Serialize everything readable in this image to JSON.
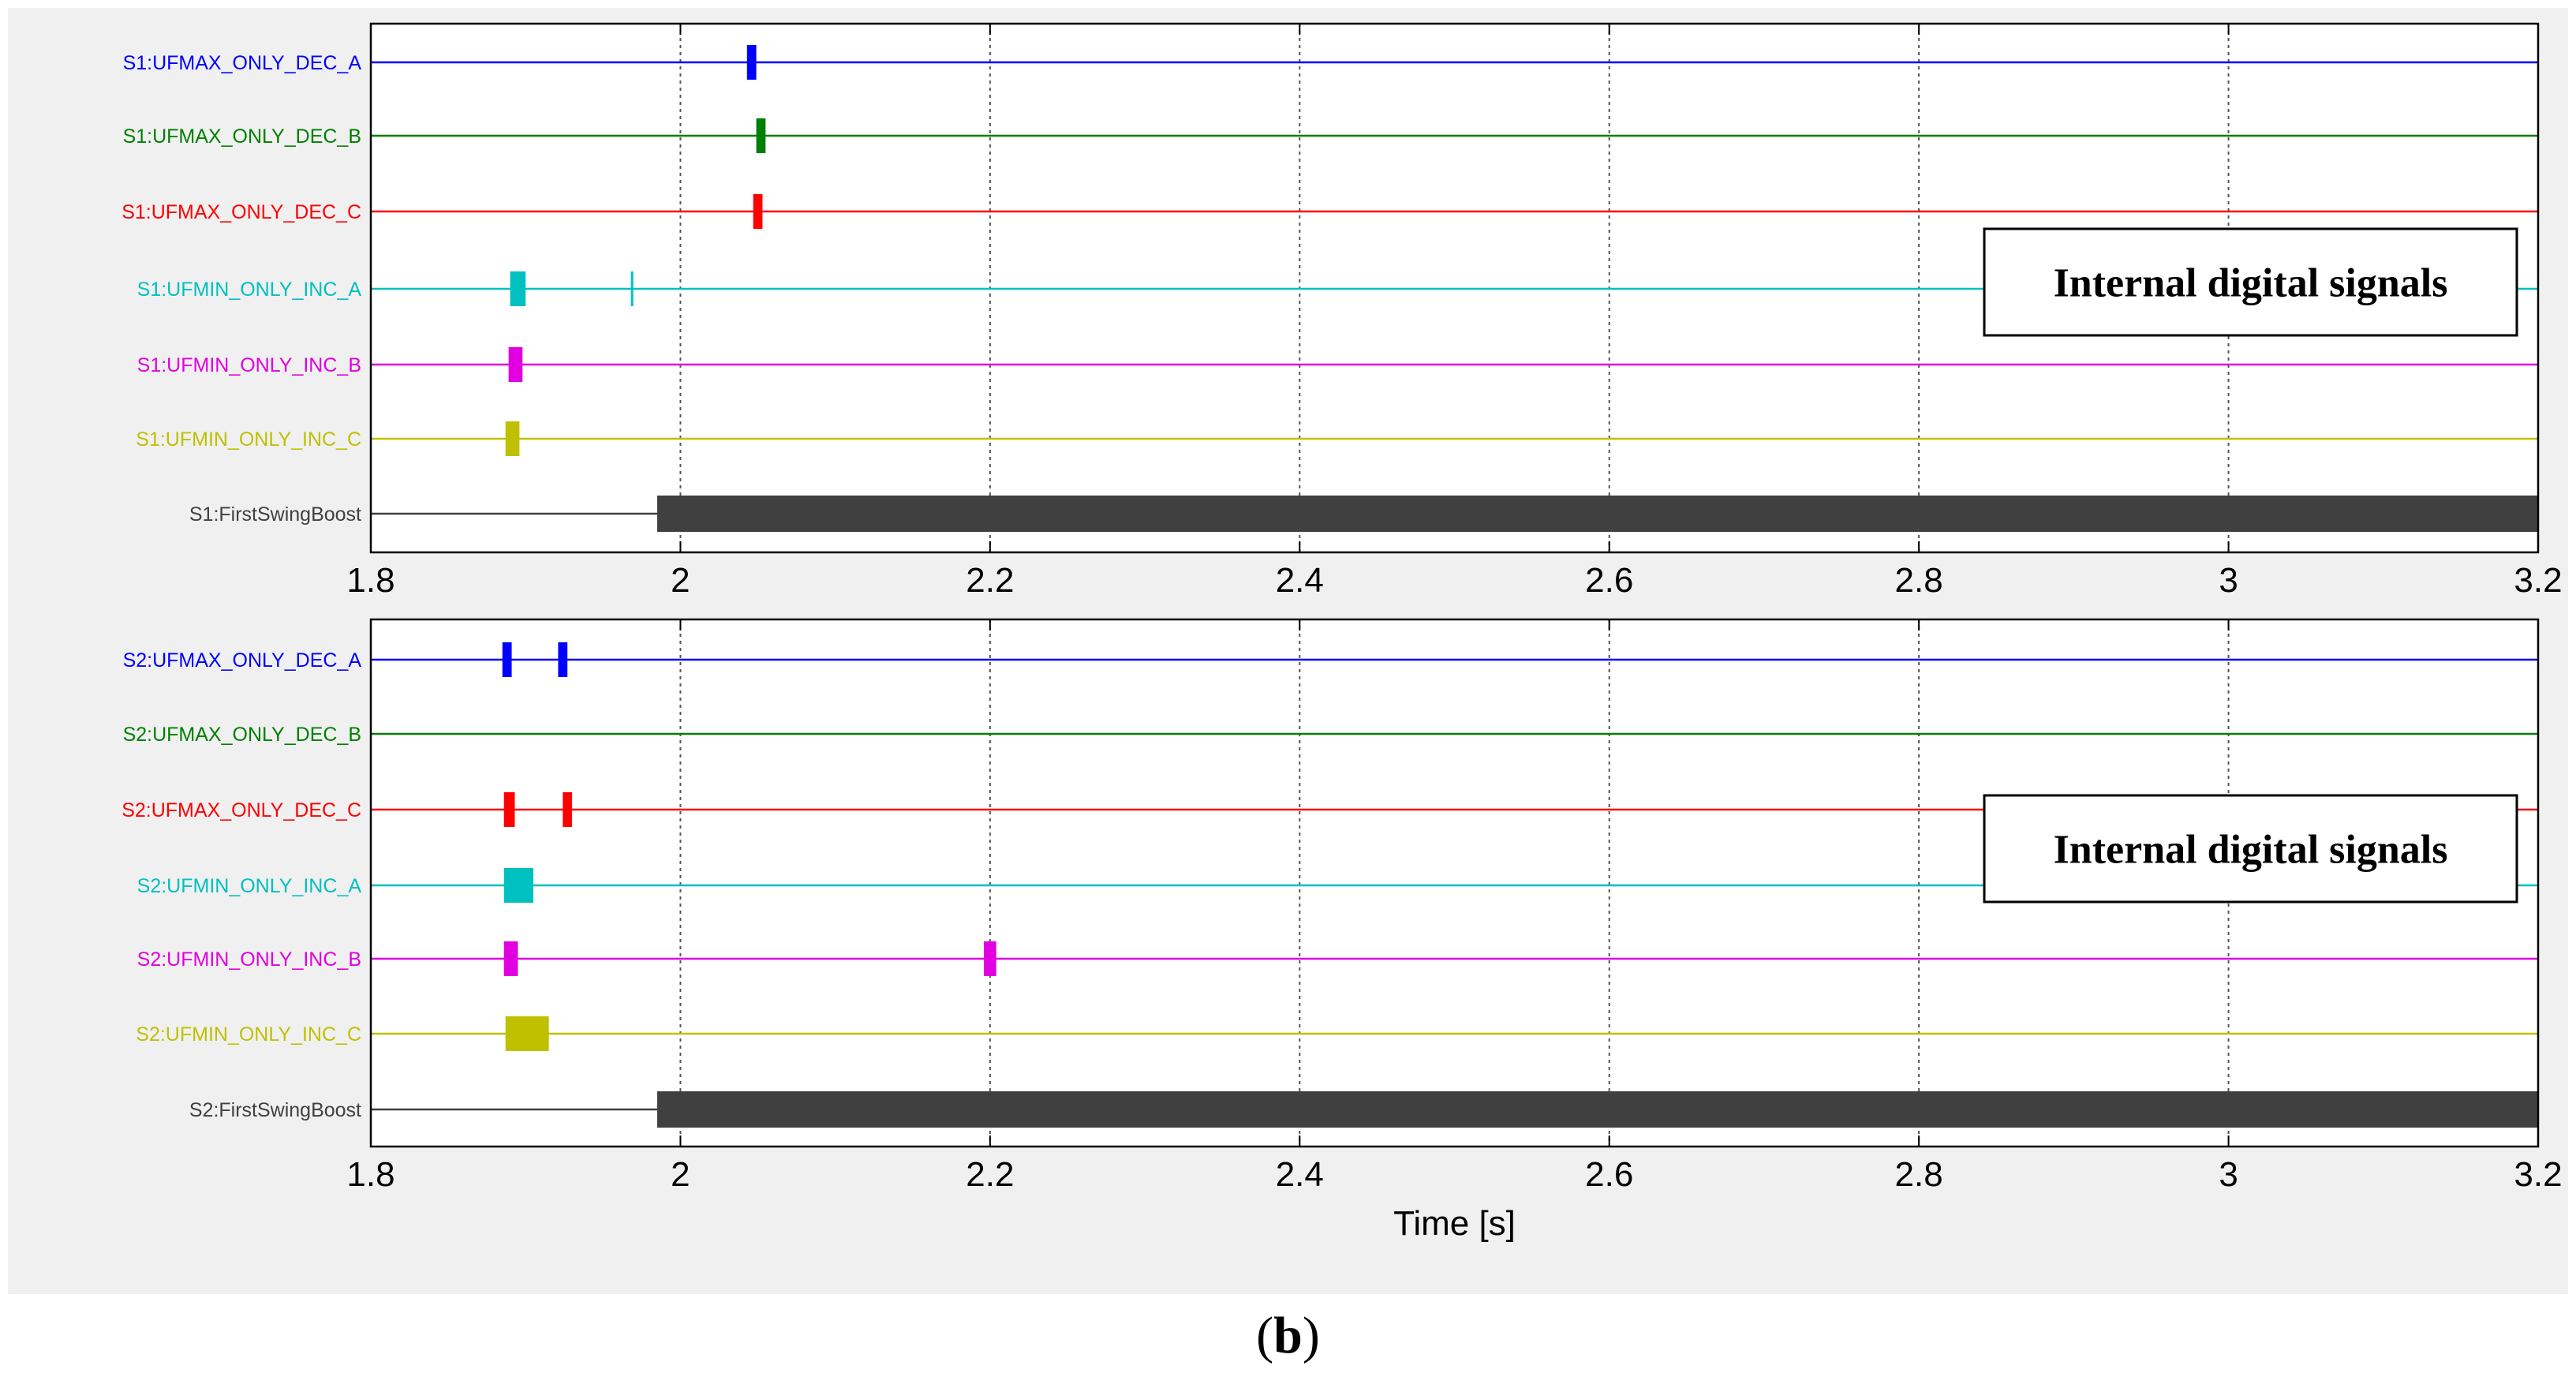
{
  "caption": {
    "open": "(",
    "letter": "b",
    "close": ")"
  },
  "chart_data": [
    {
      "type": "digital-timing",
      "xlim": [
        1.8,
        3.2
      ],
      "xticks": [
        1.8,
        2,
        2.2,
        2.4,
        2.6,
        2.8,
        3,
        3.2
      ],
      "xtick_labels": [
        "1.8",
        "2",
        "2.2",
        "2.4",
        "2.6",
        "2.8",
        "3",
        "3.2"
      ],
      "xlabel": "",
      "grid": "vertical-dotted",
      "annotation": "Internal digital signals",
      "signals": [
        {
          "name": "S1:UFMAX_ONLY_DEC_A",
          "color": "#0000ff",
          "pulses": [
            [
              2.043,
              2.049
            ]
          ]
        },
        {
          "name": "S1:UFMAX_ONLY_DEC_B",
          "color": "#008000",
          "pulses": [
            [
              2.049,
              2.055
            ]
          ]
        },
        {
          "name": "S1:UFMAX_ONLY_DEC_C",
          "color": "#ff0000",
          "pulses": [
            [
              2.047,
              2.053
            ]
          ]
        },
        {
          "name": "S1:UFMIN_ONLY_INC_A",
          "color": "#00c0c0",
          "pulses": [
            [
              1.89,
              1.9
            ],
            [
              1.968,
              1.969
            ]
          ]
        },
        {
          "name": "S1:UFMIN_ONLY_INC_B",
          "color": "#e000e0",
          "pulses": [
            [
              1.889,
              1.898
            ]
          ]
        },
        {
          "name": "S1:UFMIN_ONLY_INC_C",
          "color": "#c0c000",
          "pulses": [
            [
              1.887,
              1.896
            ]
          ]
        },
        {
          "name": "S1:FirstSwingBoost",
          "color": "#404040",
          "pulses": [
            [
              1.985,
              3.2
            ]
          ]
        }
      ]
    },
    {
      "type": "digital-timing",
      "xlim": [
        1.8,
        3.2
      ],
      "xticks": [
        1.8,
        2,
        2.2,
        2.4,
        2.6,
        2.8,
        3,
        3.2
      ],
      "xtick_labels": [
        "1.8",
        "2",
        "2.2",
        "2.4",
        "2.6",
        "2.8",
        "3",
        "3.2"
      ],
      "xlabel": "Time [s]",
      "grid": "vertical-dotted",
      "annotation": "Internal digital signals",
      "signals": [
        {
          "name": "S2:UFMAX_ONLY_DEC_A",
          "color": "#0000ff",
          "pulses": [
            [
              1.885,
              1.891
            ],
            [
              1.921,
              1.927
            ]
          ]
        },
        {
          "name": "S2:UFMAX_ONLY_DEC_B",
          "color": "#008000",
          "pulses": []
        },
        {
          "name": "S2:UFMAX_ONLY_DEC_C",
          "color": "#ff0000",
          "pulses": [
            [
              1.886,
              1.893
            ],
            [
              1.924,
              1.93
            ]
          ]
        },
        {
          "name": "S2:UFMIN_ONLY_INC_A",
          "color": "#00c0c0",
          "pulses": [
            [
              1.886,
              1.905
            ]
          ]
        },
        {
          "name": "S2:UFMIN_ONLY_INC_B",
          "color": "#e000e0",
          "pulses": [
            [
              1.886,
              1.895
            ],
            [
              2.196,
              2.204
            ]
          ]
        },
        {
          "name": "S2:UFMIN_ONLY_INC_C",
          "color": "#c0c000",
          "pulses": [
            [
              1.887,
              1.915
            ]
          ]
        },
        {
          "name": "S2:FirstSwingBoost",
          "color": "#404040",
          "pulses": [
            [
              1.985,
              3.2
            ]
          ]
        }
      ]
    }
  ]
}
